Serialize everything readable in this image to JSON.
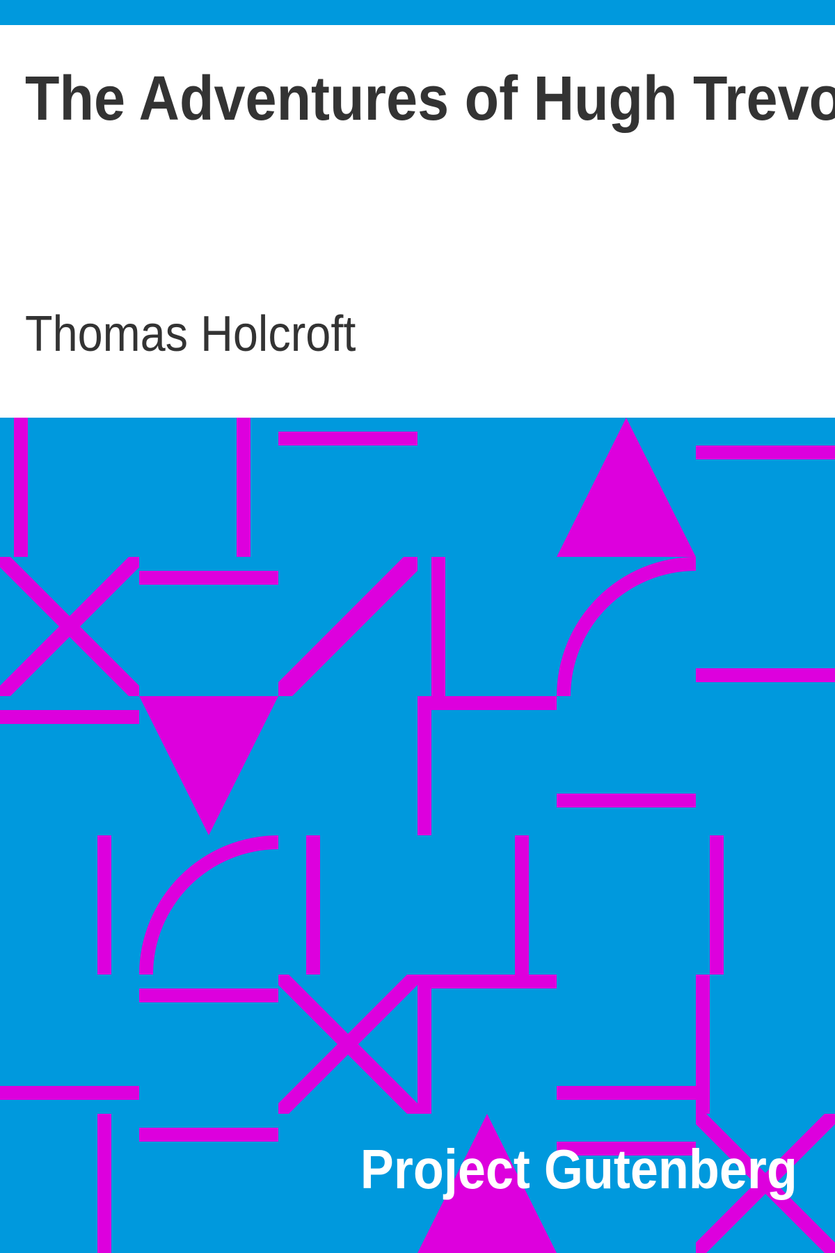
{
  "book": {
    "title": "The Adventures of Hugh Trevor",
    "author": "Thomas Holcroft",
    "publisher": "Project Gutenberg"
  },
  "colors": {
    "band": "#0099dd",
    "pattern": "#dd00dd",
    "text_dark": "#333333",
    "text_light": "#ffffff",
    "background": "#ffffff"
  }
}
